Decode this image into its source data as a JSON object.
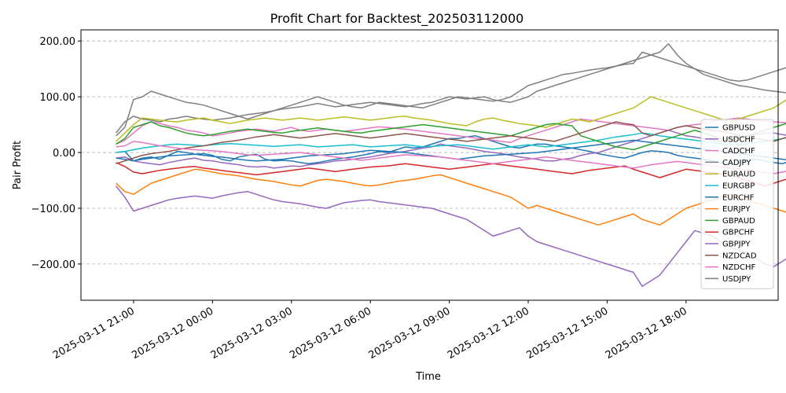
{
  "chart_data": {
    "type": "line",
    "title": "Profit Chart for Backtest_202503112000",
    "xlabel": "Time",
    "ylabel": "Pair Profit",
    "x_start": "2025-03-11 20:20",
    "x_end": "2025-03-12 20:20",
    "x_step_minutes": 20,
    "xlim": [
      "2025-03-11 19:00",
      "2025-03-12 21:30"
    ],
    "ylim": [
      -265,
      220
    ],
    "x_ticks": [
      {
        "value": "2025-03-11 21:00",
        "label": "2025-03-11 21:00"
      },
      {
        "value": "2025-03-12 00:00",
        "label": "2025-03-12 00:00"
      },
      {
        "value": "2025-03-12 03:00",
        "label": "2025-03-12 03:00"
      },
      {
        "value": "2025-03-12 06:00",
        "label": "2025-03-12 06:00"
      },
      {
        "value": "2025-03-12 09:00",
        "label": "2025-03-12 09:00"
      },
      {
        "value": "2025-03-12 12:00",
        "label": "2025-03-12 12:00"
      },
      {
        "value": "2025-03-12 15:00",
        "label": "2025-03-12 15:00"
      },
      {
        "value": "2025-03-12 18:00",
        "label": "2025-03-12 18:00"
      }
    ],
    "y_ticks": [
      {
        "value": 200,
        "label": "200.00"
      },
      {
        "value": 100,
        "label": "100.00"
      },
      {
        "value": 0,
        "label": "0.00"
      },
      {
        "value": -100,
        "label": "−100.00"
      },
      {
        "value": -200,
        "label": "−200.00"
      }
    ],
    "grid": "horizontal dashed",
    "legend_position": "right",
    "series": [
      {
        "name": "GBPUSD",
        "color": "#1f77b4",
        "values": [
          0,
          2,
          -15,
          -10,
          -8,
          -12,
          -5,
          2,
          0,
          -3,
          -2,
          -5,
          -12,
          -15,
          -8,
          -5,
          -3,
          -12,
          -15,
          -14,
          -15,
          -18,
          -20,
          -18,
          -15,
          -12,
          -10,
          -8,
          -5,
          -2,
          2,
          0,
          5,
          10,
          8,
          10,
          15,
          20,
          25,
          25,
          28,
          30,
          25,
          20,
          15,
          10,
          8,
          12,
          15,
          15,
          12,
          10,
          8,
          5,
          2,
          -2,
          -5,
          -8,
          -10,
          -5,
          0,
          3,
          2,
          0,
          -5,
          -8,
          -10,
          -12,
          -15,
          -18,
          -20,
          -18,
          -15,
          -12,
          -15,
          -18,
          -20,
          -15,
          -10,
          -5,
          -2
        ]
      },
      {
        "name": "USDCHF",
        "color": "#9467bd",
        "values": [
          -10,
          -8,
          -15,
          -18,
          -20,
          -22,
          -18,
          -15,
          -12,
          -10,
          -14,
          -15,
          -18,
          -20,
          -22,
          -25,
          -26,
          -25,
          -28,
          -26,
          -24,
          -25,
          -22,
          -20,
          -18,
          -15,
          -14,
          -12,
          -10,
          -8,
          -5,
          -2,
          0,
          2,
          5,
          8,
          10,
          15,
          12,
          10,
          8,
          5,
          2,
          0,
          -2,
          -5,
          -8,
          -10,
          -12,
          -15,
          -15,
          -12,
          -10,
          -5,
          -2,
          0,
          5,
          10,
          15,
          20,
          25,
          30,
          35,
          40,
          35,
          30,
          28,
          25,
          22,
          20,
          25,
          28,
          30,
          32,
          35,
          35,
          32,
          30,
          28,
          30,
          32
        ]
      },
      {
        "name": "CADCHF",
        "color": "#e377c2",
        "values": [
          15,
          22,
          35,
          48,
          55,
          52,
          48,
          45,
          40,
          38,
          35,
          30,
          32,
          35,
          38,
          40,
          42,
          40,
          38,
          42,
          45,
          40,
          38,
          40,
          42,
          40,
          38,
          40,
          42,
          44,
          46,
          45,
          43,
          42,
          40,
          38,
          36,
          34,
          32,
          30,
          28,
          26,
          24,
          22,
          20,
          18,
          25,
          30,
          35,
          40,
          45,
          50,
          55,
          60,
          58,
          56,
          54,
          52,
          50,
          48,
          46,
          44,
          42,
          40,
          45,
          48,
          50,
          52,
          55,
          58,
          60,
          62,
          60,
          58,
          56,
          55,
          54,
          53,
          52,
          58,
          62
        ]
      },
      {
        "name": "CADJPY",
        "color": "#7f7f7f",
        "values": [
          35,
          55,
          65,
          60,
          58,
          55,
          60,
          62,
          65,
          62,
          60,
          58,
          60,
          62,
          65,
          68,
          70,
          72,
          75,
          78,
          80,
          82,
          85,
          88,
          85,
          82,
          84,
          86,
          88,
          90,
          88,
          86,
          84,
          82,
          85,
          88,
          90,
          95,
          100,
          98,
          96,
          98,
          100,
          95,
          92,
          90,
          95,
          100,
          110,
          115,
          120,
          125,
          130,
          135,
          140,
          145,
          150,
          155,
          160,
          165,
          170,
          175,
          180,
          195,
          175,
          160,
          150,
          145,
          140,
          135,
          130,
          128,
          130,
          135,
          140,
          145,
          150,
          155,
          150,
          145,
          140
        ]
      },
      {
        "name": "EURAUD",
        "color": "#bcbd22",
        "values": [
          20,
          35,
          50,
          62,
          60,
          58,
          56,
          55,
          58,
          60,
          62,
          58,
          55,
          52,
          55,
          58,
          60,
          62,
          60,
          58,
          60,
          62,
          60,
          58,
          60,
          62,
          64,
          62,
          60,
          58,
          60,
          62,
          64,
          65,
          62,
          60,
          58,
          55,
          52,
          50,
          48,
          55,
          60,
          62,
          58,
          55,
          52,
          50,
          48,
          45,
          50,
          55,
          60,
          58,
          55,
          60,
          65,
          70,
          75,
          80,
          90,
          100,
          95,
          90,
          85,
          80,
          75,
          70,
          65,
          60,
          55,
          60,
          65,
          70,
          75,
          80,
          90,
          100,
          110,
          120,
          105
        ]
      },
      {
        "name": "EURGBP",
        "color": "#17becf",
        "values": [
          0,
          2,
          5,
          8,
          10,
          12,
          14,
          15,
          14,
          13,
          12,
          14,
          15,
          16,
          15,
          14,
          13,
          12,
          11,
          12,
          13,
          14,
          12,
          10,
          11,
          12,
          13,
          14,
          12,
          10,
          11,
          12,
          13,
          14,
          12,
          10,
          11,
          12,
          13,
          14,
          12,
          10,
          8,
          6,
          8,
          10,
          12,
          14,
          12,
          10,
          12,
          14,
          16,
          18,
          20,
          22,
          25,
          28,
          30,
          32,
          35,
          33,
          30,
          28,
          26,
          24,
          22,
          20,
          18,
          16,
          15,
          14,
          16,
          18,
          20,
          22,
          25,
          28,
          30,
          32,
          30
        ]
      },
      {
        "name": "EURCHF",
        "color": "#1f77b4",
        "values": [
          -10,
          -12,
          -15,
          -12,
          -10,
          -8,
          -6,
          -5,
          -4,
          -3,
          -5,
          -7,
          -8,
          -10,
          -12,
          -14,
          -15,
          -14,
          -13,
          -12,
          -10,
          -8,
          -6,
          -5,
          -4,
          -3,
          -2,
          0,
          2,
          4,
          3,
          2,
          1,
          0,
          -2,
          -4,
          -6,
          -8,
          -10,
          -12,
          -10,
          -8,
          -6,
          -5,
          -4,
          -3,
          -2,
          -1,
          0,
          2,
          4,
          6,
          8,
          10,
          12,
          14,
          16,
          18,
          20,
          22,
          20,
          18,
          16,
          14,
          12,
          10,
          8,
          6,
          4,
          2,
          0,
          -2,
          -4,
          -6,
          -8,
          -10,
          -12,
          -14,
          -16,
          -18,
          -20
        ]
      },
      {
        "name": "EURJPY",
        "color": "#ff7f0e",
        "values": [
          -55,
          -70,
          -75,
          -65,
          -55,
          -50,
          -45,
          -40,
          -35,
          -30,
          -32,
          -35,
          -38,
          -40,
          -42,
          -45,
          -48,
          -50,
          -52,
          -55,
          -58,
          -60,
          -55,
          -50,
          -48,
          -50,
          -52,
          -55,
          -58,
          -60,
          -58,
          -55,
          -52,
          -50,
          -48,
          -45,
          -42,
          -40,
          -45,
          -50,
          -55,
          -60,
          -65,
          -70,
          -75,
          -80,
          -90,
          -100,
          -95,
          -100,
          -105,
          -110,
          -115,
          -120,
          -125,
          -130,
          -125,
          -120,
          -115,
          -110,
          -120,
          -125,
          -130,
          -120,
          -110,
          -100,
          -95,
          -90,
          -85,
          -80,
          -75,
          -80,
          -85,
          -90,
          -95,
          -100,
          -105,
          -110,
          -115,
          -120,
          -110
        ]
      },
      {
        "name": "GBPAUD",
        "color": "#2ca02c",
        "values": [
          15,
          25,
          45,
          50,
          55,
          48,
          45,
          40,
          35,
          32,
          30,
          32,
          35,
          38,
          40,
          42,
          40,
          38,
          36,
          35,
          38,
          40,
          42,
          44,
          42,
          40,
          38,
          36,
          35,
          38,
          40,
          42,
          44,
          46,
          48,
          50,
          48,
          46,
          44,
          42,
          40,
          38,
          36,
          34,
          32,
          30,
          35,
          40,
          45,
          50,
          52,
          50,
          48,
          30,
          25,
          20,
          15,
          10,
          8,
          5,
          10,
          15,
          20,
          25,
          30,
          35,
          40,
          35,
          30,
          25,
          20,
          25,
          30,
          35,
          40,
          45,
          50,
          55,
          60,
          65,
          45
        ]
      },
      {
        "name": "GBPCHF",
        "color": "#d62728",
        "values": [
          -18,
          -25,
          -35,
          -38,
          -35,
          -32,
          -30,
          -28,
          -26,
          -25,
          -28,
          -30,
          -32,
          -34,
          -36,
          -38,
          -40,
          -38,
          -36,
          -34,
          -32,
          -30,
          -28,
          -30,
          -32,
          -34,
          -32,
          -30,
          -28,
          -26,
          -25,
          -24,
          -22,
          -20,
          -22,
          -24,
          -26,
          -28,
          -30,
          -28,
          -26,
          -24,
          -22,
          -20,
          -22,
          -24,
          -26,
          -28,
          -30,
          -32,
          -34,
          -36,
          -38,
          -35,
          -32,
          -30,
          -28,
          -26,
          -24,
          -30,
          -35,
          -40,
          -45,
          -40,
          -35,
          -30,
          -32,
          -34,
          -36,
          -38,
          -40,
          -45,
          -50,
          -55,
          -60,
          -55,
          -50,
          -45,
          -40,
          -35,
          -30
        ]
      },
      {
        "name": "GBPJPY",
        "color": "#9467bd",
        "values": [
          -60,
          -80,
          -105,
          -100,
          -95,
          -90,
          -85,
          -82,
          -80,
          -78,
          -80,
          -82,
          -78,
          -75,
          -72,
          -70,
          -75,
          -80,
          -85,
          -88,
          -90,
          -92,
          -95,
          -98,
          -100,
          -95,
          -90,
          -88,
          -86,
          -85,
          -88,
          -90,
          -92,
          -94,
          -96,
          -98,
          -100,
          -105,
          -110,
          -115,
          -120,
          -130,
          -140,
          -150,
          -145,
          -140,
          -135,
          -150,
          -160,
          -165,
          -170,
          -175,
          -180,
          -185,
          -190,
          -195,
          -200,
          -205,
          -210,
          -215,
          -240,
          -230,
          -220,
          -200,
          -180,
          -160,
          -140,
          -145,
          -150,
          -160,
          -170,
          -175,
          -180,
          -190,
          -200,
          -205,
          -195,
          -185,
          -175,
          -170,
          -165
        ]
      },
      {
        "name": "NZDCAD",
        "color": "#8c564b",
        "values": [
          -20,
          -15,
          -10,
          -5,
          -2,
          0,
          2,
          5,
          8,
          10,
          12,
          15,
          18,
          20,
          22,
          25,
          28,
          30,
          32,
          30,
          28,
          26,
          28,
          30,
          32,
          34,
          32,
          30,
          28,
          26,
          28,
          30,
          32,
          34,
          32,
          30,
          28,
          26,
          24,
          22,
          20,
          22,
          24,
          26,
          28,
          30,
          28,
          26,
          24,
          22,
          20,
          25,
          30,
          35,
          40,
          45,
          50,
          55,
          52,
          50,
          35,
          30,
          35,
          40,
          45,
          48,
          45,
          42,
          40,
          38,
          35,
          30,
          28,
          25,
          22,
          20,
          25,
          30,
          35,
          40,
          35
        ]
      },
      {
        "name": "NZDCHF",
        "color": "#e377c2",
        "values": [
          10,
          12,
          20,
          18,
          15,
          12,
          10,
          8,
          6,
          5,
          4,
          3,
          2,
          0,
          -2,
          -4,
          -5,
          -4,
          -3,
          -2,
          -1,
          0,
          -2,
          -4,
          -6,
          -8,
          -10,
          -12,
          -14,
          -12,
          -10,
          -8,
          -6,
          -4,
          -5,
          -6,
          -7,
          -8,
          -10,
          -12,
          -14,
          -16,
          -18,
          -20,
          -18,
          -16,
          -14,
          -12,
          -10,
          -8,
          -10,
          -12,
          -14,
          -16,
          -18,
          -20,
          -22,
          -24,
          -26,
          -28,
          -25,
          -22,
          -20,
          -18,
          -16,
          -18,
          -20,
          -22,
          -24,
          -26,
          -28,
          -30,
          -32,
          -34,
          -36,
          -38,
          -35,
          -32,
          -30,
          -28,
          -25
        ]
      },
      {
        "name": "USDJPY",
        "color": "#7f7f7f",
        "values": [
          30,
          45,
          95,
          100,
          110,
          105,
          100,
          95,
          90,
          88,
          85,
          80,
          75,
          70,
          65,
          60,
          65,
          70,
          75,
          80,
          85,
          90,
          95,
          100,
          95,
          90,
          85,
          82,
          80,
          85,
          90,
          88,
          86,
          84,
          82,
          80,
          85,
          90,
          95,
          100,
          98,
          96,
          94,
          92,
          95,
          100,
          110,
          120,
          125,
          130,
          135,
          140,
          142,
          145,
          148,
          150,
          152,
          155,
          158,
          160,
          180,
          175,
          170,
          165,
          160,
          155,
          150,
          140,
          135,
          130,
          125,
          120,
          118,
          115,
          112,
          110,
          108,
          106,
          104,
          100,
          95
        ]
      }
    ]
  }
}
